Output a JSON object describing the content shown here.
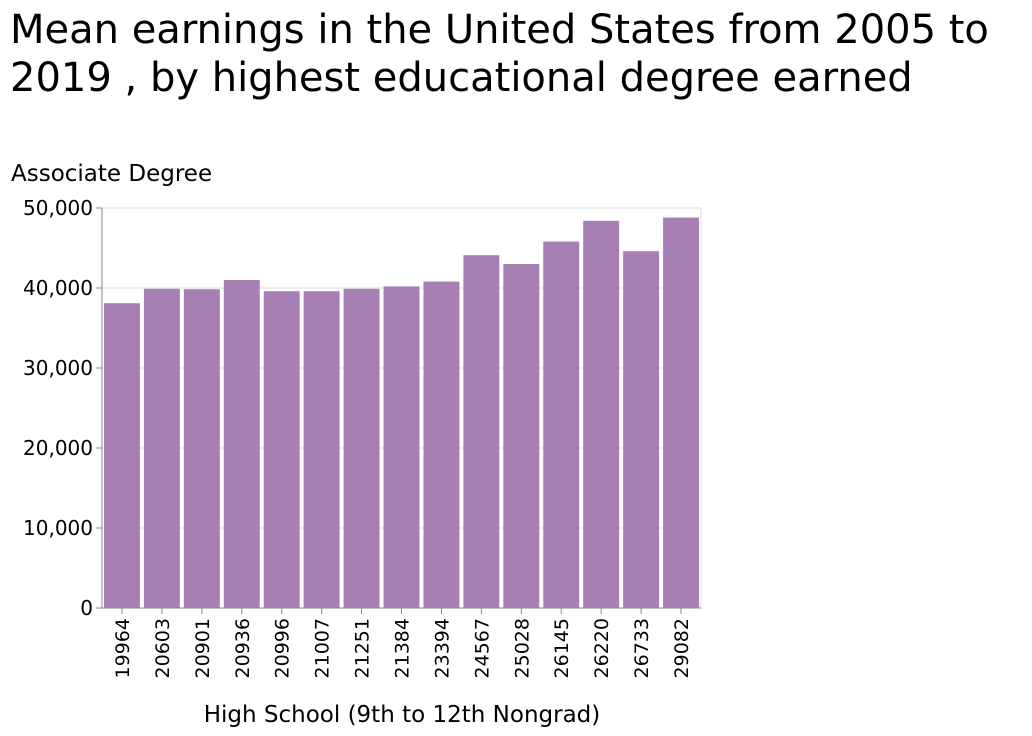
{
  "chart_data": {
    "type": "bar",
    "title": "Mean earnings in the United States from 2005 to 2019 , by highest educational degree earned",
    "xlabel": "High School (9th to 12th Nongrad)",
    "ylabel": "Associate Degree",
    "categories": [
      "19964",
      "20603",
      "20901",
      "20936",
      "20996",
      "21007",
      "21251",
      "21384",
      "23394",
      "24567",
      "25028",
      "26145",
      "26220",
      "26733",
      "29082"
    ],
    "values": [
      38100,
      39900,
      39850,
      41000,
      39600,
      39600,
      39900,
      40200,
      40800,
      44100,
      43000,
      45800,
      48400,
      44600,
      48800
    ],
    "ylim": [
      0,
      50000
    ],
    "yticks": [
      0,
      10000,
      20000,
      30000,
      40000,
      50000
    ],
    "ytick_labels": [
      "0",
      "10,000",
      "20,000",
      "30,000",
      "40,000",
      "50,000"
    ],
    "grid": true,
    "bar_color": "#a680b5"
  }
}
